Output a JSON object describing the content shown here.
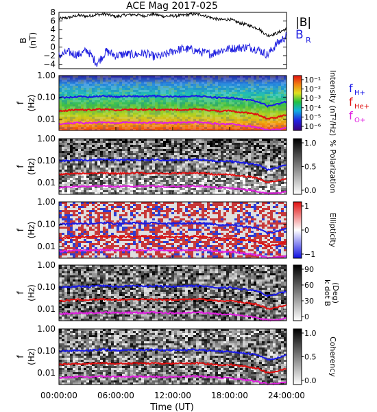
{
  "title": "ACE Mag 2017-025",
  "colors": {
    "b_total": "#000000",
    "b_r": "#1f1fe0",
    "f_h": "#1a1ae8",
    "f_he": "#e01010",
    "f_o": "#e020e0"
  },
  "chart_data": [
    {
      "type": "line",
      "panel": "magnetic-field",
      "ylabel_line1": "B",
      "ylabel_line2": "(nT)",
      "yticks": [
        "8",
        "6",
        "4",
        "2",
        "0",
        "−2",
        "−4"
      ],
      "ylim": [
        -5,
        8
      ],
      "xlim": [
        0,
        24
      ],
      "series": [
        {
          "name": "|B|",
          "x": [
            0,
            1,
            2,
            3,
            4,
            5,
            6,
            7,
            8,
            9,
            10,
            11,
            12,
            13,
            14,
            15,
            16,
            17,
            18,
            19,
            20,
            21,
            22,
            23,
            24
          ],
          "values": [
            6.5,
            6.8,
            7.3,
            7.1,
            7.5,
            7.6,
            7.0,
            7.4,
            7.5,
            7.2,
            7.6,
            7.1,
            7.2,
            7.3,
            7.6,
            7.5,
            6.8,
            6.3,
            6.4,
            5.6,
            5.0,
            4.3,
            2.6,
            3.2,
            4.2
          ]
        },
        {
          "name": "B",
          "subscript": "R",
          "x": [
            0,
            1,
            2,
            3,
            4,
            5,
            6,
            7,
            8,
            9,
            10,
            11,
            12,
            13,
            14,
            15,
            16,
            17,
            18,
            19,
            20,
            21,
            22,
            23,
            24
          ],
          "values": [
            -2.0,
            -1.2,
            -1.8,
            -0.8,
            -3.8,
            -1.0,
            -2.0,
            -1.6,
            -1.8,
            -1.4,
            -2.2,
            -2.0,
            -1.0,
            -0.4,
            -0.6,
            -1.2,
            -1.6,
            -0.8,
            -0.4,
            -0.2,
            0.0,
            -0.6,
            -1.8,
            0.8,
            2.5
          ]
        }
      ]
    },
    {
      "type": "heatmap",
      "panel": "intensity",
      "ylabel_line1": "f",
      "ylabel_line2": "(Hz)",
      "colorbar_label": "Intensity (nT²/Hz)",
      "colorbar_ticks": [
        "10⁻¹",
        "10⁻²",
        "10⁻³",
        "10⁻⁴",
        "10⁻⁵",
        "10⁻⁶"
      ],
      "legend": [
        {
          "label": "f",
          "subscript": "H+",
          "color": "#1a1ae8"
        },
        {
          "label": "f",
          "subscript": "He+",
          "color": "#e01010"
        },
        {
          "label": "f",
          "subscript": "O+",
          "color": "#e020e0"
        }
      ]
    },
    {
      "type": "heatmap",
      "panel": "polarization",
      "ylabel_line1": "f",
      "ylabel_line2": "(Hz)",
      "colorbar_label": "% Polarization",
      "colorbar_ticks": [
        "1.0",
        "0.5",
        "0.0"
      ]
    },
    {
      "type": "heatmap",
      "panel": "ellipticity",
      "ylabel_line1": "f",
      "ylabel_line2": "(Hz)",
      "colorbar_label": "Ellipticity",
      "colorbar_ticks": [
        "1",
        "0",
        "−1"
      ]
    },
    {
      "type": "heatmap",
      "panel": "kdotb",
      "ylabel_line1": "f",
      "ylabel_line2": "(Hz)",
      "colorbar_label": "k dot B",
      "colorbar_label2": "(Deg)",
      "colorbar_ticks": [
        "90",
        "60",
        "30",
        "0"
      ]
    },
    {
      "type": "heatmap",
      "panel": "coherency",
      "ylabel_line1": "f",
      "ylabel_line2": "(Hz)",
      "colorbar_label": "Coherency",
      "colorbar_ticks": [
        "1.0",
        "0.5",
        "0.0"
      ]
    }
  ],
  "freq_yticks": [
    "1.00",
    "0.10",
    "0.01"
  ],
  "freq_ylim": [
    0.003,
    1.0
  ],
  "gyro_lines": {
    "x": [
      0,
      1,
      2,
      3,
      4,
      5,
      6,
      7,
      8,
      9,
      10,
      11,
      12,
      13,
      14,
      15,
      16,
      17,
      18,
      19,
      20,
      21,
      22,
      23,
      24
    ],
    "h_plus": [
      0.098,
      0.1,
      0.108,
      0.103,
      0.112,
      0.114,
      0.105,
      0.11,
      0.112,
      0.108,
      0.114,
      0.106,
      0.108,
      0.109,
      0.114,
      0.112,
      0.102,
      0.094,
      0.096,
      0.084,
      0.075,
      0.064,
      0.039,
      0.048,
      0.063
    ],
    "he_plus": [
      0.024,
      0.025,
      0.027,
      0.026,
      0.028,
      0.028,
      0.026,
      0.027,
      0.028,
      0.027,
      0.028,
      0.026,
      0.027,
      0.027,
      0.028,
      0.028,
      0.025,
      0.023,
      0.024,
      0.021,
      0.019,
      0.016,
      0.01,
      0.012,
      0.016
    ],
    "o_plus": [
      0.0061,
      0.0063,
      0.0068,
      0.0065,
      0.007,
      0.0071,
      0.0066,
      0.0069,
      0.007,
      0.0068,
      0.0071,
      0.0066,
      0.0067,
      0.0068,
      0.0071,
      0.007,
      0.0064,
      0.0059,
      0.006,
      0.0052,
      0.0047,
      0.004,
      0.0032,
      0.0033,
      0.0039
    ]
  },
  "x_axis": {
    "label": "Time (UT)",
    "ticks": [
      "00:00:00",
      "06:00:00",
      "12:00:00",
      "18:00:00",
      "24:00:00"
    ],
    "tick_values": [
      0,
      6,
      12,
      18,
      24
    ]
  }
}
